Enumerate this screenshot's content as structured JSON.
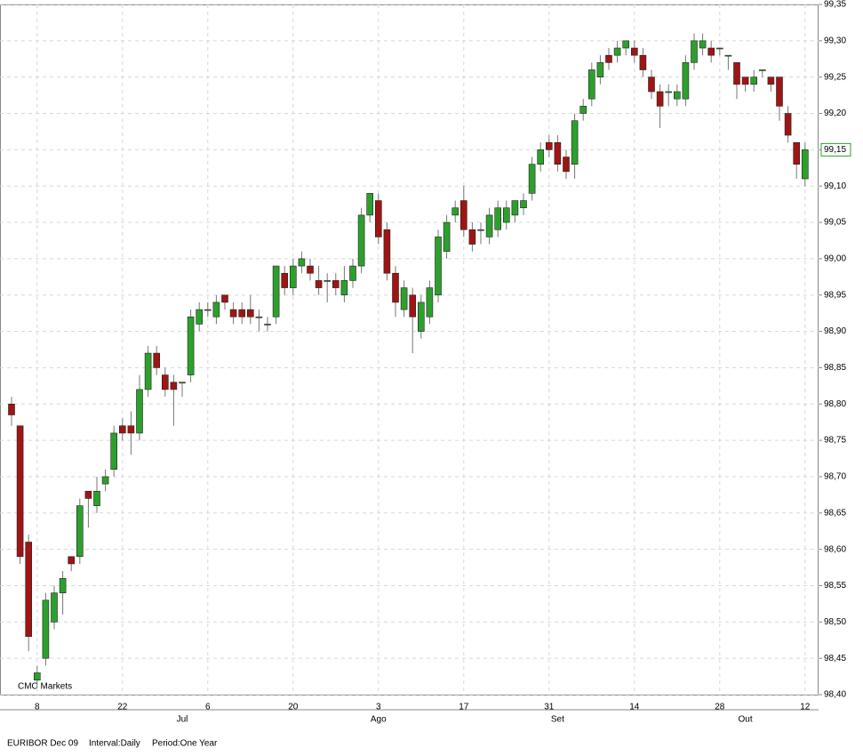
{
  "chart_data": {
    "type": "candlestick",
    "watermark": "CMC Markets",
    "footer": [
      "EURIBOR Dec 09",
      "Interval:Daily",
      "Period:One Year"
    ],
    "categories": [
      null,
      null,
      null,
      "8",
      null,
      null,
      null,
      null,
      null,
      null,
      null,
      null,
      null,
      "22",
      null,
      null,
      null,
      null,
      null,
      null,
      null,
      null,
      null,
      "6",
      null,
      null,
      null,
      null,
      null,
      null,
      null,
      null,
      null,
      "20",
      null,
      null,
      null,
      null,
      null,
      null,
      null,
      null,
      null,
      "3",
      null,
      null,
      null,
      null,
      null,
      null,
      null,
      null,
      null,
      "17",
      null,
      null,
      null,
      null,
      null,
      null,
      null,
      null,
      null,
      "31",
      null,
      null,
      null,
      null,
      null,
      null,
      null,
      null,
      null,
      "14",
      null,
      null,
      null,
      null,
      null,
      null,
      null,
      null,
      null,
      "28",
      null,
      null,
      null,
      null,
      null,
      null,
      null,
      null,
      null,
      "12"
    ],
    "months": [
      null,
      null,
      null,
      null,
      null,
      null,
      null,
      null,
      null,
      null,
      null,
      null,
      null,
      null,
      null,
      null,
      null,
      null,
      null,
      null,
      "Jul",
      null,
      null,
      null,
      null,
      null,
      null,
      null,
      null,
      null,
      null,
      null,
      null,
      null,
      null,
      null,
      null,
      null,
      null,
      null,
      null,
      null,
      null,
      "Ago",
      null,
      null,
      null,
      null,
      null,
      null,
      null,
      null,
      null,
      null,
      null,
      null,
      null,
      null,
      null,
      null,
      null,
      null,
      null,
      null,
      "Set",
      null,
      null,
      null,
      null,
      null,
      null,
      null,
      null,
      null,
      null,
      null,
      null,
      null,
      null,
      null,
      null,
      null,
      null,
      null,
      null,
      null,
      "Out",
      null,
      null,
      null,
      null,
      null,
      null,
      null
    ],
    "open": [
      98.8,
      98.77,
      98.61,
      98.42,
      98.45,
      98.5,
      98.54,
      98.59,
      98.59,
      98.68,
      98.66,
      98.69,
      98.71,
      98.77,
      98.77,
      98.76,
      98.82,
      98.87,
      98.84,
      98.83,
      98.83,
      98.84,
      98.91,
      98.93,
      98.92,
      98.95,
      98.93,
      98.93,
      98.93,
      98.92,
      98.91,
      98.92,
      98.98,
      98.96,
      98.99,
      98.99,
      98.97,
      98.97,
      98.97,
      98.95,
      98.97,
      98.99,
      99.06,
      99.08,
      99.04,
      98.98,
      98.93,
      98.95,
      98.9,
      98.92,
      98.95,
      99.01,
      99.06,
      99.08,
      99.04,
      99.04,
      99.03,
      99.04,
      99.05,
      99.06,
      99.07,
      99.09,
      99.13,
      99.16,
      99.16,
      99.14,
      99.13,
      99.2,
      99.22,
      99.25,
      99.28,
      99.28,
      99.29,
      99.29,
      99.28,
      99.25,
      99.23,
      99.23,
      99.22,
      99.22,
      99.27,
      99.29,
      99.29,
      99.29,
      99.28,
      99.27,
      99.25,
      99.24,
      99.26,
      99.25,
      99.25,
      99.2,
      99.16,
      99.11
    ],
    "high": [
      98.81,
      98.77,
      98.62,
      98.44,
      98.54,
      98.55,
      98.57,
      98.59,
      98.67,
      98.68,
      98.7,
      98.71,
      98.77,
      98.78,
      98.79,
      98.84,
      98.88,
      98.88,
      98.85,
      98.84,
      98.83,
      98.93,
      98.94,
      98.94,
      98.95,
      98.95,
      98.94,
      98.94,
      98.95,
      98.93,
      98.92,
      98.99,
      98.99,
      99.0,
      99.01,
      99.0,
      98.99,
      98.98,
      98.98,
      98.99,
      99.0,
      99.07,
      99.09,
      99.09,
      99.05,
      98.99,
      98.97,
      98.96,
      98.95,
      98.97,
      99.04,
      99.06,
      99.08,
      99.1,
      99.05,
      99.05,
      99.07,
      99.08,
      99.08,
      99.08,
      99.09,
      99.14,
      99.16,
      99.17,
      99.17,
      99.15,
      99.2,
      99.22,
      99.27,
      99.28,
      99.29,
      99.3,
      99.3,
      99.3,
      99.29,
      99.26,
      99.24,
      99.24,
      99.24,
      99.28,
      99.31,
      99.31,
      99.3,
      99.29,
      99.28,
      99.27,
      99.25,
      99.26,
      99.26,
      99.25,
      99.25,
      99.21,
      99.16,
      99.16
    ],
    "low": [
      98.77,
      98.58,
      98.46,
      98.41,
      98.44,
      98.49,
      98.51,
      98.57,
      98.58,
      98.63,
      98.65,
      98.68,
      98.7,
      98.75,
      98.73,
      98.75,
      98.81,
      98.84,
      98.81,
      98.77,
      98.81,
      98.83,
      98.9,
      98.92,
      98.91,
      98.93,
      98.91,
      98.91,
      98.91,
      98.9,
      98.9,
      98.91,
      98.95,
      98.95,
      98.98,
      98.97,
      98.95,
      98.94,
      98.95,
      98.94,
      98.96,
      98.98,
      99.05,
      99.02,
      98.97,
      98.92,
      98.92,
      98.87,
      98.89,
      98.91,
      98.94,
      99.0,
      99.05,
      99.03,
      99.01,
      99.02,
      99.02,
      99.03,
      99.04,
      99.05,
      99.06,
      99.08,
      99.12,
      99.14,
      99.12,
      99.11,
      99.11,
      99.19,
      99.21,
      99.24,
      99.26,
      99.27,
      99.28,
      99.27,
      99.25,
      99.22,
      99.18,
      99.21,
      99.21,
      99.21,
      99.26,
      99.28,
      99.27,
      99.28,
      99.26,
      99.22,
      99.23,
      99.23,
      99.25,
      99.23,
      99.19,
      99.16,
      99.11,
      99.1
    ],
    "close": [
      98.785,
      98.59,
      98.48,
      98.43,
      98.53,
      98.54,
      98.56,
      98.58,
      98.66,
      98.67,
      98.68,
      98.7,
      98.76,
      98.76,
      98.76,
      98.82,
      98.87,
      98.85,
      98.82,
      98.82,
      98.83,
      98.92,
      98.93,
      98.93,
      98.94,
      98.94,
      98.92,
      98.92,
      98.92,
      98.92,
      98.91,
      98.99,
      98.96,
      98.99,
      99.0,
      98.98,
      98.96,
      98.97,
      98.96,
      98.97,
      98.99,
      99.06,
      99.09,
      99.03,
      98.98,
      98.94,
      98.96,
      98.92,
      98.94,
      98.96,
      99.03,
      99.05,
      99.07,
      99.04,
      99.02,
      99.04,
      99.06,
      99.07,
      99.07,
      99.08,
      99.08,
      99.13,
      99.15,
      99.15,
      99.13,
      99.12,
      99.19,
      99.21,
      99.26,
      99.27,
      99.27,
      99.29,
      99.3,
      99.28,
      99.26,
      99.23,
      99.21,
      99.23,
      99.23,
      99.27,
      99.3,
      99.3,
      99.28,
      99.29,
      99.28,
      99.24,
      99.24,
      99.25,
      99.26,
      99.24,
      99.21,
      99.17,
      99.13,
      99.15
    ],
    "up_color": "#2ca02c",
    "down_color": "#a01414",
    "last_price": {
      "value": 99.15,
      "label": "99,15"
    },
    "ylim": [
      98.4,
      99.35
    ],
    "yticks": [
      {
        "value": 98.4,
        "label": "98,40"
      },
      {
        "value": 98.45,
        "label": "98,45"
      },
      {
        "value": 98.5,
        "label": "98,50"
      },
      {
        "value": 98.55,
        "label": "98,55"
      },
      {
        "value": 98.6,
        "label": "98,60"
      },
      {
        "value": 98.65,
        "label": "98,65"
      },
      {
        "value": 98.7,
        "label": "98,70"
      },
      {
        "value": 98.75,
        "label": "98,75"
      },
      {
        "value": 98.8,
        "label": "98,80"
      },
      {
        "value": 98.85,
        "label": "98,85"
      },
      {
        "value": 98.9,
        "label": "98,90"
      },
      {
        "value": 98.95,
        "label": "98,95"
      },
      {
        "value": 99.0,
        "label": "99,00"
      },
      {
        "value": 99.05,
        "label": "99,05"
      },
      {
        "value": 99.1,
        "label": "99,10"
      },
      {
        "value": 99.15,
        "label": "99,15"
      },
      {
        "value": 99.2,
        "label": "99,20"
      },
      {
        "value": 99.25,
        "label": "99,25"
      },
      {
        "value": 99.3,
        "label": "99,30"
      },
      {
        "value": 99.35,
        "label": "99,35"
      }
    ],
    "grid": true
  }
}
